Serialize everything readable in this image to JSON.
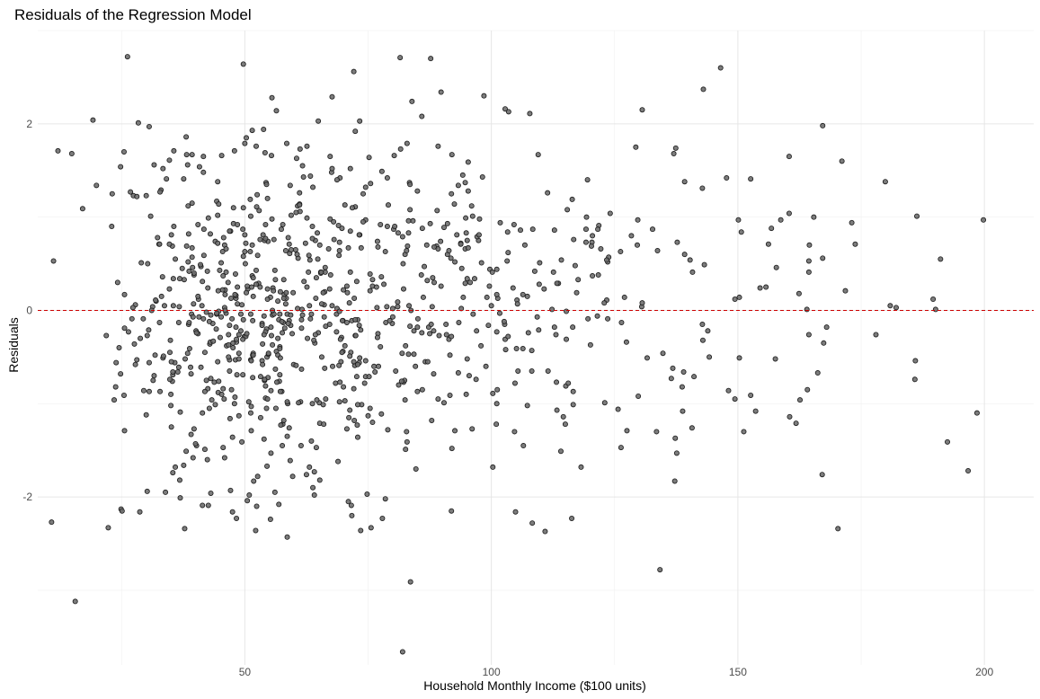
{
  "chart_data": {
    "type": "scatter",
    "title": "Residuals of the Regression Model",
    "xlabel": "Household Monthly Income ($100 units)",
    "ylabel": "Residuals",
    "xlim": [
      8,
      210
    ],
    "ylim": [
      -3.8,
      3.0
    ],
    "x_ticks": [
      50,
      100,
      150,
      200
    ],
    "y_ticks": [
      -2,
      0,
      2
    ],
    "grid": true,
    "reference_line": {
      "y": 0,
      "color": "#cc0000",
      "style": "dashed"
    },
    "point_color": "#6e6e6e",
    "point_edge_color": "#1a1a1a",
    "n_points": 1000,
    "seed": 20240517,
    "points": [
      [
        10.8,
        -2.27
      ],
      [
        11.2,
        0.53
      ],
      [
        12.1,
        1.71
      ],
      [
        14.9,
        1.68
      ],
      [
        15.6,
        -3.12
      ],
      [
        19.2,
        2.04
      ],
      [
        17.1,
        1.09
      ],
      [
        22.3,
        -2.33
      ],
      [
        23.1,
        1.25
      ],
      [
        24.9,
        -2.13
      ],
      [
        26.8,
        1.27
      ],
      [
        28.4,
        2.01
      ],
      [
        28.7,
        -2.16
      ],
      [
        31.6,
        1.56
      ],
      [
        33.9,
        -1.95
      ],
      [
        35.6,
        1.71
      ],
      [
        37.8,
        -2.34
      ],
      [
        40.8,
        1.54
      ],
      [
        42.6,
        -2.09
      ],
      [
        47.1,
        -1.93
      ],
      [
        50.3,
        1.85
      ],
      [
        52.4,
        -2.1
      ],
      [
        53.8,
        1.94
      ],
      [
        55.2,
        -2.24
      ],
      [
        58.5,
        1.79
      ],
      [
        67.7,
        2.29
      ],
      [
        73.5,
        -2.36
      ],
      [
        81.5,
        2.71
      ],
      [
        83.6,
        -2.91
      ],
      [
        83.9,
        2.24
      ],
      [
        85.9,
        2.08
      ],
      [
        87.7,
        2.7
      ],
      [
        82.0,
        -3.66
      ],
      [
        98.5,
        2.3
      ],
      [
        103.5,
        2.13
      ],
      [
        107.8,
        2.11
      ],
      [
        110.9,
        -2.37
      ],
      [
        116.3,
        -2.23
      ],
      [
        130.6,
        2.15
      ],
      [
        134.2,
        -2.78
      ],
      [
        137.4,
        1.74
      ],
      [
        152.6,
        1.41
      ],
      [
        167.1,
        -1.76
      ],
      [
        170.3,
        -2.34
      ],
      [
        179.9,
        1.38
      ],
      [
        186.3,
        1.01
      ],
      [
        199.8,
        0.97
      ],
      [
        198.5,
        -1.1
      ],
      [
        189.6,
        0.12
      ],
      [
        191.1,
        0.55
      ],
      [
        165.4,
        1.0
      ],
      [
        161.8,
        -1.21
      ],
      [
        158.7,
        0.97
      ],
      [
        156.2,
        0.71
      ],
      [
        149.4,
        0.12
      ],
      [
        151.2,
        -1.3
      ],
      [
        142.8,
        1.31
      ],
      [
        140.7,
        -1.26
      ],
      [
        136.8,
        -0.62
      ],
      [
        128.4,
        0.8
      ],
      [
        125.7,
        -1.06
      ],
      [
        122.2,
        0.66
      ],
      [
        119.5,
        1.4
      ],
      [
        113.3,
        -1.07
      ],
      [
        109.6,
        -0.21
      ]
    ]
  }
}
